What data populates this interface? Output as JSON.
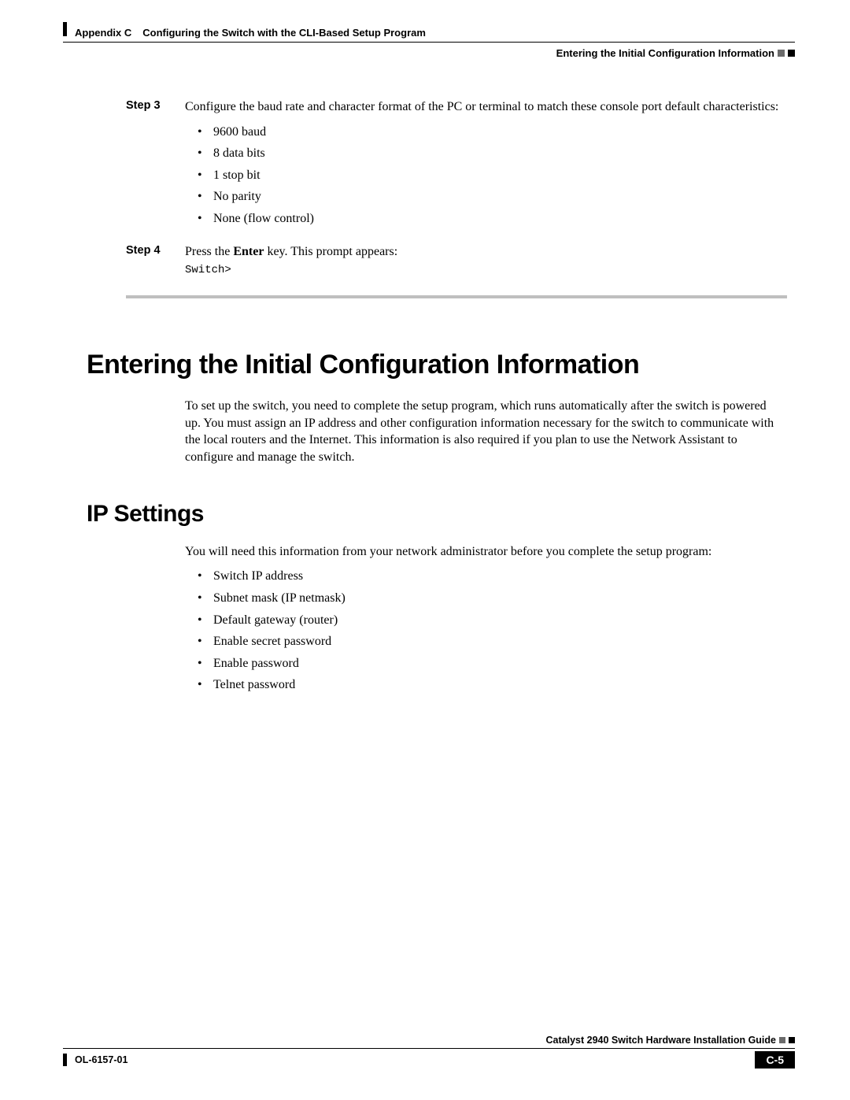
{
  "header": {
    "appendix": "Appendix C",
    "chapter_title": "Configuring the Switch with the CLI-Based Setup Program",
    "section_title": "Entering the Initial Configuration Information"
  },
  "step3": {
    "label": "Step 3",
    "text": "Configure the baud rate and character format of the PC or terminal to match these console port default characteristics:",
    "items": [
      "9600 baud",
      "8 data bits",
      "1 stop bit",
      "No parity",
      "None (flow control)"
    ]
  },
  "step4": {
    "label": "Step 4",
    "text_prefix": "Press the ",
    "text_bold": "Enter",
    "text_suffix": " key. This prompt appears:",
    "prompt": "Switch>"
  },
  "heading1": "Entering the Initial Configuration Information",
  "para1": "To set up the switch, you need to complete the setup program, which runs automatically after the switch is powered up. You must assign an IP address and other configuration information necessary for the switch to communicate with the local routers and the Internet. This information is also required if you plan to use the Network Assistant to configure and manage the switch.",
  "heading2": "IP Settings",
  "para2": "You will need this information from your network administrator before you complete the setup program:",
  "ip_items": [
    "Switch IP address",
    "Subnet mask (IP netmask)",
    "Default gateway (router)",
    "Enable secret password",
    "Enable password",
    "Telnet password"
  ],
  "footer": {
    "guide": "Catalyst 2940 Switch Hardware Installation Guide",
    "doc_id": "OL-6157-01",
    "page": "C-5"
  },
  "colors": {
    "text": "#000000",
    "rule_grey": "#bfbfbf",
    "square_grey": "#6b6b6b",
    "page_box_bg": "#000000",
    "page_box_fg": "#ffffff"
  }
}
